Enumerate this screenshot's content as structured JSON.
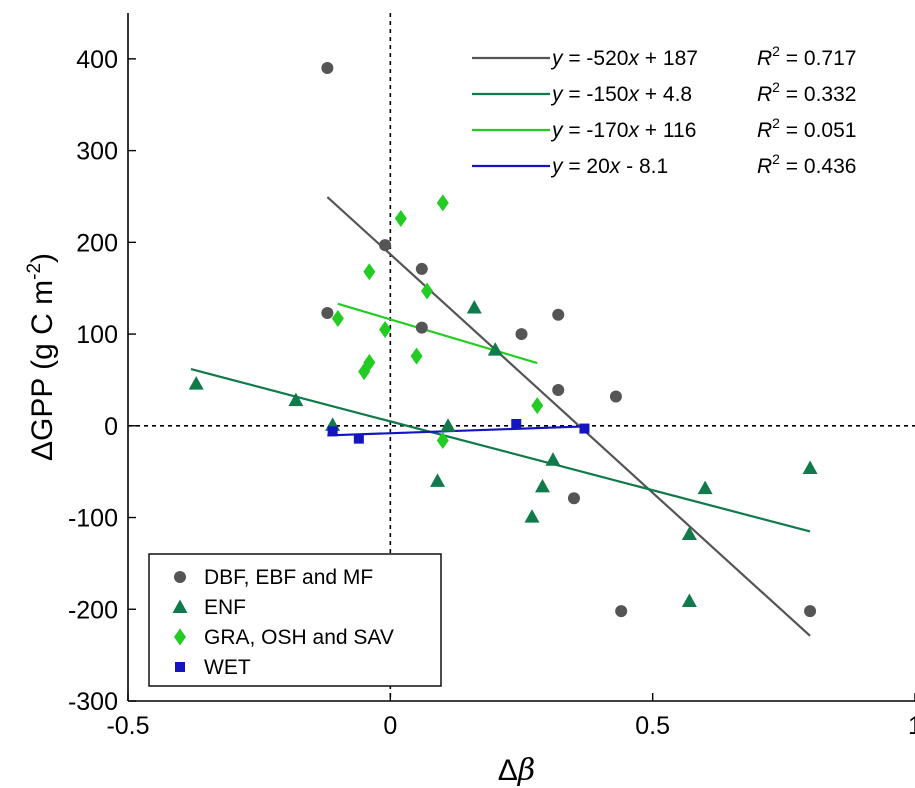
{
  "chart_data": {
    "type": "scatter",
    "xlabel_symbol": "Δβ",
    "ylabel": {
      "prefix": "ΔGPP (g C m",
      "sup": "-2",
      "suffix": ")"
    },
    "xlim": [
      -0.5,
      1
    ],
    "ylim": [
      -300,
      450
    ],
    "xticks": [
      -0.5,
      0,
      0.5,
      1
    ],
    "xtick_labels": [
      "-0.5",
      "0",
      "0.5",
      "1"
    ],
    "yticks": [
      -300,
      -200,
      -100,
      0,
      100,
      200,
      300,
      400
    ],
    "ytick_labels": [
      "-300",
      "-200",
      "-100",
      "0",
      "100",
      "200",
      "300",
      "400"
    ],
    "zero_lines": {
      "x": 0,
      "y": 0,
      "style": "dashed"
    },
    "grid": false,
    "legend_position": "bottom-left",
    "series": [
      {
        "name": "DBF, EBF and MF",
        "marker": "circle",
        "color": "#555555",
        "points": [
          [
            -0.12,
            390
          ],
          [
            -0.12,
            123
          ],
          [
            -0.01,
            197
          ],
          [
            0.06,
            171
          ],
          [
            0.06,
            107
          ],
          [
            0.25,
            100
          ],
          [
            0.32,
            121
          ],
          [
            0.32,
            39
          ],
          [
            0.43,
            32
          ],
          [
            0.35,
            -79
          ],
          [
            0.44,
            -202
          ],
          [
            0.8,
            -202
          ]
        ],
        "fit": {
          "x_range": [
            -0.12,
            0.8
          ],
          "slope": -520,
          "intercept": 187,
          "color": "#555555",
          "equation": {
            "lhs": "y",
            "rhs": " = -520",
            "var": "x",
            "tail": " + 187"
          },
          "r2": " = 0.717"
        }
      },
      {
        "name": "ENF",
        "marker": "triangle",
        "color": "#107a4a",
        "points": [
          [
            -0.37,
            46
          ],
          [
            -0.18,
            28
          ],
          [
            -0.11,
            1
          ],
          [
            0.11,
            0
          ],
          [
            0.09,
            -60
          ],
          [
            0.16,
            129
          ],
          [
            0.2,
            83
          ],
          [
            0.31,
            -37
          ],
          [
            0.29,
            -66
          ],
          [
            0.27,
            -99
          ],
          [
            0.57,
            -118
          ],
          [
            0.57,
            -191
          ],
          [
            0.6,
            -68
          ],
          [
            0.8,
            -46
          ]
        ],
        "fit": {
          "x_range": [
            -0.38,
            0.8
          ],
          "slope": -150,
          "intercept": 4.8,
          "color": "#107a4a",
          "equation": {
            "lhs": "y",
            "rhs": " = -150",
            "var": "x",
            "tail": " + 4.8"
          },
          "r2": " = 0.332"
        }
      },
      {
        "name": "GRA, OSH and SAV",
        "marker": "diamond",
        "color": "#22cc22",
        "points": [
          [
            -0.1,
            117
          ],
          [
            -0.04,
            168
          ],
          [
            0.02,
            226
          ],
          [
            0.1,
            243
          ],
          [
            0.07,
            147
          ],
          [
            -0.01,
            105
          ],
          [
            0.05,
            76
          ],
          [
            -0.05,
            59
          ],
          [
            -0.04,
            69
          ],
          [
            0.1,
            -16
          ],
          [
            0.28,
            22
          ]
        ],
        "fit": {
          "x_range": [
            -0.1,
            0.28
          ],
          "slope": -170,
          "intercept": 116,
          "color": "#22cc22",
          "equation": {
            "lhs": "y",
            "rhs": " = -170",
            "var": "x",
            "tail": " + 116"
          },
          "r2": " = 0.051"
        }
      },
      {
        "name": "WET",
        "marker": "square",
        "color": "#1515c0",
        "points": [
          [
            -0.11,
            -6
          ],
          [
            -0.06,
            -14
          ],
          [
            0.24,
            2
          ],
          [
            0.37,
            -3
          ]
        ],
        "fit": {
          "x_range": [
            -0.12,
            0.37
          ],
          "slope": 20,
          "intercept": -8.1,
          "color": "#1515c0",
          "equation": {
            "lhs": "y",
            "rhs": " = 20",
            "var": "x",
            "tail": " - 8.1"
          },
          "r2": " = 0.436"
        }
      }
    ],
    "r2_symbol": "R",
    "r2_sup": "2"
  }
}
